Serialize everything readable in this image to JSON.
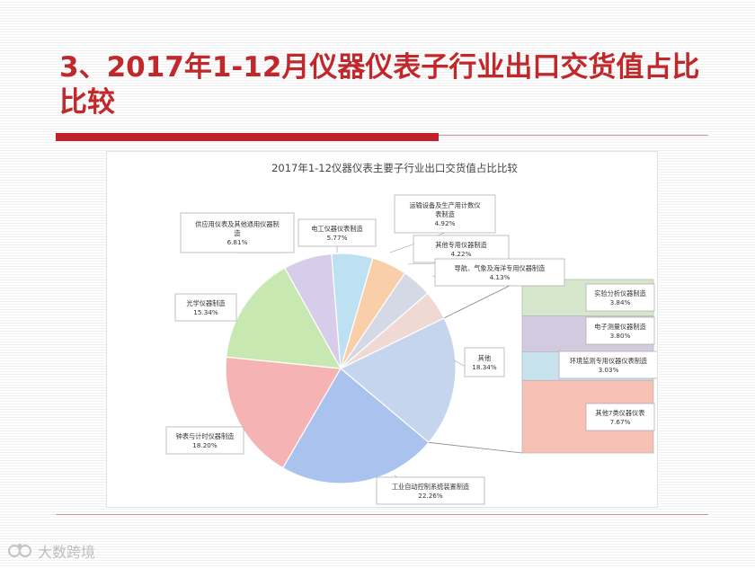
{
  "slide": {
    "title": "3、2017年1-12月仪器仪表子行业出口交货值占比比较"
  },
  "watermark": {
    "text": "大数跨境"
  },
  "chart_data": {
    "type": "pie",
    "title": "2017年1-12仪器仪表主要子行业出口交货值占比比较",
    "unit": "%",
    "slices": [
      {
        "label": "其他",
        "value": 18.34,
        "color": "#c5d5ee"
      },
      {
        "label": "工业自动控制系统装置制造",
        "value": 22.26,
        "color": "#a9c2ee"
      },
      {
        "label": "钟表与计时仪器制造",
        "value": 18.2,
        "color": "#f6b3b3"
      },
      {
        "label": "光学仪器制造",
        "value": 15.34,
        "color": "#c7e8b0"
      },
      {
        "label": "供应用仪表及其他通用仪器制造",
        "value": 6.81,
        "color": "#d7cdea"
      },
      {
        "label": "电工仪器仪表制造",
        "value": 5.77,
        "color": "#bde1f2"
      },
      {
        "label": "运输设备及生产用计数仪表制造",
        "value": 4.92,
        "color": "#f8cfa9"
      },
      {
        "label": "其他专用仪器制造",
        "value": 4.22,
        "color": "#d4d9e5"
      },
      {
        "label": "导航、气象及海洋专用仪器制造",
        "value": 4.13,
        "color": "#f0d9d3"
      }
    ],
    "breakdown": {
      "of": "其他",
      "items": [
        {
          "label": "实验分析仪器制造",
          "value": 3.84,
          "color": "#d6e8cc"
        },
        {
          "label": "电子测量仪器制造",
          "value": 3.8,
          "color": "#d2cbe0"
        },
        {
          "label": "环境监测专用仪器仪表制造",
          "value": 3.03,
          "color": "#c8e2ee"
        },
        {
          "label": "其他7类仪器仪表",
          "value": 7.67,
          "color": "#f6c0b5"
        }
      ]
    },
    "data_labels": [
      {
        "name": [
          "其他"
        ],
        "pct": "18.34%"
      },
      {
        "name": [
          "工业自动控制系统装置制造"
        ],
        "pct": "22.26%"
      },
      {
        "name": [
          "钟表与计时仪器制造"
        ],
        "pct": "18.20%"
      },
      {
        "name": [
          "光学仪器制造"
        ],
        "pct": "15.34%"
      },
      {
        "name": [
          "供应用仪表及其他通用仪器制",
          "造"
        ],
        "pct": "6.81%"
      },
      {
        "name": [
          "电工仪器仪表制造"
        ],
        "pct": "5.77%"
      },
      {
        "name": [
          "运输设备及生产用计数仪",
          "表制造"
        ],
        "pct": "4.92%"
      },
      {
        "name": [
          "其他专用仪器制造"
        ],
        "pct": "4.22%"
      },
      {
        "name": [
          "导航、气象及海洋专用仪器制造"
        ],
        "pct": "4.13%"
      },
      {
        "name": [
          "实验分析仪器制造"
        ],
        "pct": "3.84%"
      },
      {
        "name": [
          "电子测量仪器制造"
        ],
        "pct": "3.80%"
      },
      {
        "name": [
          "环境监测专用仪器仪表制造"
        ],
        "pct": "3.03%"
      },
      {
        "name": [
          "其他7类仪器仪表"
        ],
        "pct": "7.67%"
      }
    ],
    "legend": "none",
    "grid": false
  }
}
